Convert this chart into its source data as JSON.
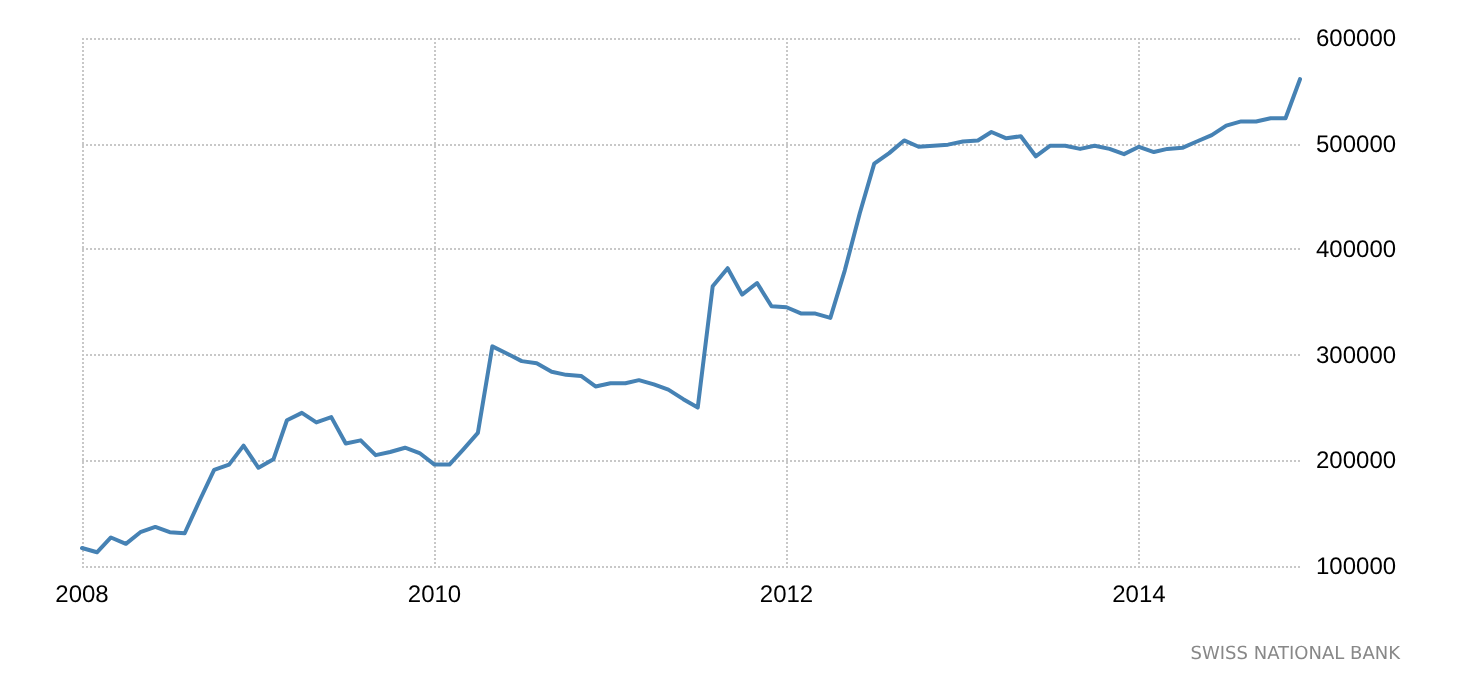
{
  "chart_data": {
    "type": "line",
    "x": [
      "2008-01",
      "2008-02",
      "2008-03",
      "2008-04",
      "2008-05",
      "2008-06",
      "2008-07",
      "2008-08",
      "2008-09",
      "2008-10",
      "2008-11",
      "2008-12",
      "2009-01",
      "2009-02",
      "2009-03",
      "2009-04",
      "2009-05",
      "2009-06",
      "2009-07",
      "2009-08",
      "2009-09",
      "2009-10",
      "2009-11",
      "2009-12",
      "2010-01",
      "2010-02",
      "2010-03",
      "2010-04",
      "2010-05",
      "2010-06",
      "2010-07",
      "2010-08",
      "2010-09",
      "2010-10",
      "2010-11",
      "2010-12",
      "2011-01",
      "2011-02",
      "2011-03",
      "2011-04",
      "2011-05",
      "2011-06",
      "2011-07",
      "2011-08",
      "2011-09",
      "2011-10",
      "2011-11",
      "2011-12",
      "2012-01",
      "2012-02",
      "2012-03",
      "2012-04",
      "2012-05",
      "2012-06",
      "2012-07",
      "2012-08",
      "2012-09",
      "2012-10",
      "2012-11",
      "2012-12",
      "2013-01",
      "2013-02",
      "2013-03",
      "2013-04",
      "2013-05",
      "2013-06",
      "2013-07",
      "2013-08",
      "2013-09",
      "2013-10",
      "2013-11",
      "2013-12",
      "2014-01",
      "2014-02",
      "2014-03",
      "2014-04",
      "2014-05",
      "2014-06",
      "2014-07",
      "2014-08",
      "2014-09",
      "2014-10",
      "2014-11",
      "2014-12"
    ],
    "series": [
      {
        "color": "#4682b4",
        "values": [
          117000,
          113000,
          127000,
          121000,
          132000,
          137000,
          132000,
          131000,
          162000,
          191000,
          196000,
          214000,
          193000,
          201000,
          238000,
          245000,
          236000,
          241000,
          216000,
          219000,
          205000,
          208000,
          212000,
          207000,
          196000,
          196000,
          210000,
          226000,
          308000,
          301000,
          294000,
          292000,
          284000,
          281000,
          280000,
          270000,
          273000,
          273000,
          276000,
          272000,
          267000,
          258000,
          250000,
          365000,
          382000,
          357000,
          368000,
          346000,
          345000,
          339000,
          339000,
          335000,
          380000,
          434000,
          481000,
          491000,
          503000,
          497000,
          498000,
          499000,
          502000,
          503000,
          511000,
          505000,
          507000,
          488000,
          498000,
          498000,
          495000,
          498000,
          495000,
          490000,
          497000,
          492000,
          495000,
          496000,
          502000,
          508000,
          517000,
          521000,
          521000,
          524000,
          524000,
          561000
        ]
      }
    ],
    "xlim": [
      "2008-01",
      "2014-12"
    ],
    "xticks": [
      {
        "value": "2008-01",
        "label": "2008"
      },
      {
        "value": "2010-01",
        "label": "2010"
      },
      {
        "value": "2012-01",
        "label": "2012"
      },
      {
        "value": "2014-01",
        "label": "2014"
      }
    ],
    "ylim": [
      100000,
      600000
    ],
    "yticks": [
      100000,
      200000,
      300000,
      400000,
      500000,
      600000
    ],
    "grid": true,
    "line_style": "solid",
    "marker": "none",
    "annotations": [
      "SWISS NATIONAL BANK"
    ]
  }
}
